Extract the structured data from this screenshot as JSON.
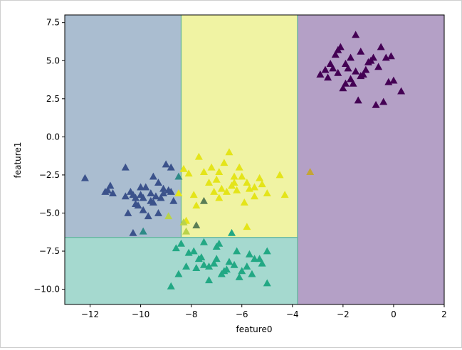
{
  "chart_data": {
    "type": "scatter",
    "xlabel": "feature0",
    "ylabel": "feature1",
    "xlim": [
      -13,
      2
    ],
    "ylim": [
      -11,
      8
    ],
    "x_ticks": [
      -12,
      -10,
      -8,
      -6,
      -4,
      -2,
      0,
      2
    ],
    "x_tick_labels": [
      "−12",
      "−10",
      "−8",
      "−6",
      "−4",
      "−2",
      "0",
      "2"
    ],
    "y_ticks": [
      7.5,
      5.0,
      2.5,
      0.0,
      -2.5,
      -5.0,
      -7.5,
      -10.0
    ],
    "y_tick_labels": [
      "7.5",
      "5.0",
      "2.5",
      "0.0",
      "−2.5",
      "−5.0",
      "−7.5",
      "−10.0"
    ],
    "grid": false,
    "marker": "triangle",
    "regions": [
      {
        "x": [
          -13,
          -8.4
        ],
        "y": [
          -6.6,
          8
        ],
        "color": "#aabdd0"
      },
      {
        "x": [
          -8.4,
          -3.8
        ],
        "y": [
          -6.6,
          8
        ],
        "color": "#f0f3a3"
      },
      {
        "x": [
          -13,
          -3.8
        ],
        "y": [
          -11,
          -6.6
        ],
        "color": "#a5d9cf"
      },
      {
        "x": [
          -3.8,
          2
        ],
        "y": [
          -11,
          8
        ],
        "color": "#b4a0c6"
      }
    ],
    "boundaries": [
      {
        "x": [
          -8.4,
          -8.4
        ],
        "y": [
          -6.6,
          8
        ]
      },
      {
        "x": [
          -13,
          -3.8
        ],
        "y": [
          -6.6,
          -6.6
        ]
      },
      {
        "x": [
          -3.8,
          -3.8
        ],
        "y": [
          -11,
          8
        ]
      }
    ],
    "series": [
      {
        "color": "#3b528b",
        "points": [
          [
            -12.2,
            -2.7
          ],
          [
            -11.4,
            -3.6
          ],
          [
            -11.2,
            -3.2
          ],
          [
            -11.3,
            -3.5
          ],
          [
            -11.1,
            -3.7
          ],
          [
            -10.6,
            -2.0
          ],
          [
            -10.4,
            -3.6
          ],
          [
            -10.5,
            -5.0
          ],
          [
            -10.3,
            -6.3
          ],
          [
            -10.2,
            -4.0
          ],
          [
            -10.0,
            -3.3
          ],
          [
            -9.9,
            -4.8
          ],
          [
            -9.8,
            -3.3
          ],
          [
            -9.6,
            -4.2
          ],
          [
            -9.5,
            -2.6
          ],
          [
            -9.3,
            -3.0
          ],
          [
            -9.0,
            -1.8
          ],
          [
            -8.8,
            -2.0
          ],
          [
            -9.1,
            -3.7
          ],
          [
            -8.7,
            -4.2
          ],
          [
            -10.1,
            -4.5
          ],
          [
            -9.7,
            -5.2
          ],
          [
            -9.4,
            -3.9
          ],
          [
            -9.2,
            -4.0
          ],
          [
            -10.2,
            -4.4
          ],
          [
            -9.9,
            -4.0
          ],
          [
            -10.6,
            -3.9
          ],
          [
            -9.5,
            -4.3
          ],
          [
            -9.3,
            -5.0
          ],
          [
            -8.9,
            -3.5
          ],
          [
            -10.0,
            -3.8
          ],
          [
            -9.6,
            -3.7
          ],
          [
            -8.8,
            -3.6
          ],
          [
            -10.3,
            -3.8
          ],
          [
            -9.1,
            -3.4
          ]
        ]
      },
      {
        "color": "#e4e419",
        "points": [
          [
            -8.3,
            -2.1
          ],
          [
            -8.1,
            -2.4
          ],
          [
            -7.9,
            -3.8
          ],
          [
            -7.7,
            -1.3
          ],
          [
            -7.5,
            -2.3
          ],
          [
            -7.2,
            -2.0
          ],
          [
            -7.0,
            -2.8
          ],
          [
            -6.9,
            -2.3
          ],
          [
            -6.7,
            -1.7
          ],
          [
            -6.5,
            -1.0
          ],
          [
            -6.3,
            -3.0
          ],
          [
            -6.1,
            -2.0
          ],
          [
            -5.9,
            -4.3
          ],
          [
            -5.8,
            -5.9
          ],
          [
            -5.5,
            -3.3
          ],
          [
            -5.3,
            -2.7
          ],
          [
            -5.0,
            -3.7
          ],
          [
            -4.5,
            -2.5
          ],
          [
            -4.3,
            -3.8
          ],
          [
            -8.5,
            -3.7
          ],
          [
            -7.3,
            -3.0
          ],
          [
            -6.6,
            -3.6
          ],
          [
            -6.4,
            -3.2
          ],
          [
            -6.2,
            -3.5
          ],
          [
            -5.7,
            -3.4
          ],
          [
            -5.2,
            -3.1
          ],
          [
            -8.2,
            -5.5
          ],
          [
            -7.8,
            -4.5
          ],
          [
            -6.8,
            -3.4
          ],
          [
            -6.0,
            -2.6
          ],
          [
            -5.5,
            -3.9
          ],
          [
            -6.9,
            -4.0
          ],
          [
            -7.1,
            -3.6
          ],
          [
            -6.3,
            -2.6
          ],
          [
            -5.8,
            -3.0
          ]
        ]
      },
      {
        "color": "#22a884",
        "points": [
          [
            -8.6,
            -7.3
          ],
          [
            -8.4,
            -7.0
          ],
          [
            -8.1,
            -7.6
          ],
          [
            -7.9,
            -7.5
          ],
          [
            -7.7,
            -8.0
          ],
          [
            -7.5,
            -8.4
          ],
          [
            -7.3,
            -8.5
          ],
          [
            -7.0,
            -7.2
          ],
          [
            -6.8,
            -9.0
          ],
          [
            -6.6,
            -8.7
          ],
          [
            -6.4,
            -6.3
          ],
          [
            -6.2,
            -7.5
          ],
          [
            -6.0,
            -8.8
          ],
          [
            -5.8,
            -8.5
          ],
          [
            -5.5,
            -8.0
          ],
          [
            -5.3,
            -8.0
          ],
          [
            -5.0,
            -7.5
          ],
          [
            -5.0,
            -9.6
          ],
          [
            -8.8,
            -9.8
          ],
          [
            -8.5,
            -9.0
          ],
          [
            -7.3,
            -9.4
          ],
          [
            -6.9,
            -7.0
          ],
          [
            -6.5,
            -8.2
          ],
          [
            -7.8,
            -8.6
          ],
          [
            -7.6,
            -7.9
          ],
          [
            -5.6,
            -9.0
          ],
          [
            -6.3,
            -8.4
          ],
          [
            -5.2,
            -8.3
          ],
          [
            -7.1,
            -8.3
          ],
          [
            -6.7,
            -8.8
          ],
          [
            -7.5,
            -6.9
          ],
          [
            -5.7,
            -7.7
          ],
          [
            -8.2,
            -8.5
          ],
          [
            -6.1,
            -9.2
          ],
          [
            -7.0,
            -8.0
          ]
        ]
      },
      {
        "color": "#440154",
        "points": [
          [
            -2.9,
            4.1
          ],
          [
            -2.5,
            4.8
          ],
          [
            -2.3,
            5.4
          ],
          [
            -2.1,
            5.9
          ],
          [
            -1.9,
            4.8
          ],
          [
            -1.7,
            3.8
          ],
          [
            -1.5,
            4.3
          ],
          [
            -1.3,
            4.0
          ],
          [
            -1.1,
            4.4
          ],
          [
            -0.9,
            5.0
          ],
          [
            -0.7,
            2.1
          ],
          [
            -0.4,
            2.3
          ],
          [
            -0.2,
            3.6
          ],
          [
            0.3,
            3.0
          ],
          [
            -2.6,
            3.9
          ],
          [
            -2.2,
            4.2
          ],
          [
            -1.8,
            4.5
          ],
          [
            -1.6,
            3.5
          ],
          [
            -1.2,
            4.1
          ],
          [
            -0.8,
            5.2
          ],
          [
            -0.6,
            4.6
          ],
          [
            -0.3,
            5.2
          ],
          [
            -1.4,
            2.4
          ],
          [
            -2.0,
            3.2
          ],
          [
            -2.4,
            4.5
          ],
          [
            -1.0,
            4.9
          ],
          [
            -0.5,
            5.9
          ],
          [
            0.0,
            3.7
          ],
          [
            -1.9,
            3.5
          ],
          [
            -2.7,
            4.4
          ],
          [
            -1.3,
            5.6
          ],
          [
            -1.7,
            5.2
          ],
          [
            -2.2,
            5.7
          ],
          [
            -1.5,
            6.7
          ],
          [
            -0.1,
            5.3
          ]
        ]
      },
      {
        "color": "#c4a536",
        "points": [
          [
            -3.3,
            -2.3
          ]
        ]
      },
      {
        "color": "#5a7d55",
        "points": [
          [
            -7.5,
            -4.2
          ],
          [
            -7.8,
            -5.8
          ]
        ]
      },
      {
        "color": "#b9d34b",
        "points": [
          [
            -8.3,
            -5.6
          ],
          [
            -8.2,
            -6.2
          ],
          [
            -8.9,
            -5.2
          ]
        ]
      },
      {
        "color": "#2e8a87",
        "points": [
          [
            -8.5,
            -2.6
          ],
          [
            -9.9,
            -6.2
          ]
        ]
      }
    ]
  }
}
